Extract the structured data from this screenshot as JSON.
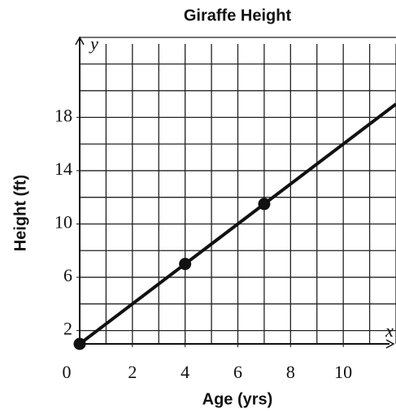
{
  "chart_data": {
    "type": "line",
    "title": "Giraffe Height",
    "x_label": "Age (yrs)",
    "y_label": "Height (ft)",
    "x_axis_name": "x",
    "y_axis_name": "y",
    "xlim": [
      0,
      12
    ],
    "ylim": [
      1,
      24
    ],
    "xticks": [
      0,
      2,
      4,
      6,
      8,
      10
    ],
    "yticks": [
      2,
      6,
      10,
      14,
      18
    ],
    "xgrid": [
      1,
      2,
      3,
      4,
      5,
      6,
      7,
      8,
      9,
      10,
      11,
      12
    ],
    "ygrid": [
      2,
      4,
      6,
      8,
      10,
      12,
      14,
      16,
      18,
      20,
      22,
      24
    ],
    "grid": true,
    "series": [
      {
        "type": "line",
        "color": "#111111",
        "x": [
          0,
          12
        ],
        "values": [
          1,
          19
        ]
      },
      {
        "type": "scatter",
        "color": "#111111",
        "x": [
          0,
          4,
          7
        ],
        "values": [
          1,
          7,
          11.5
        ]
      }
    ]
  }
}
